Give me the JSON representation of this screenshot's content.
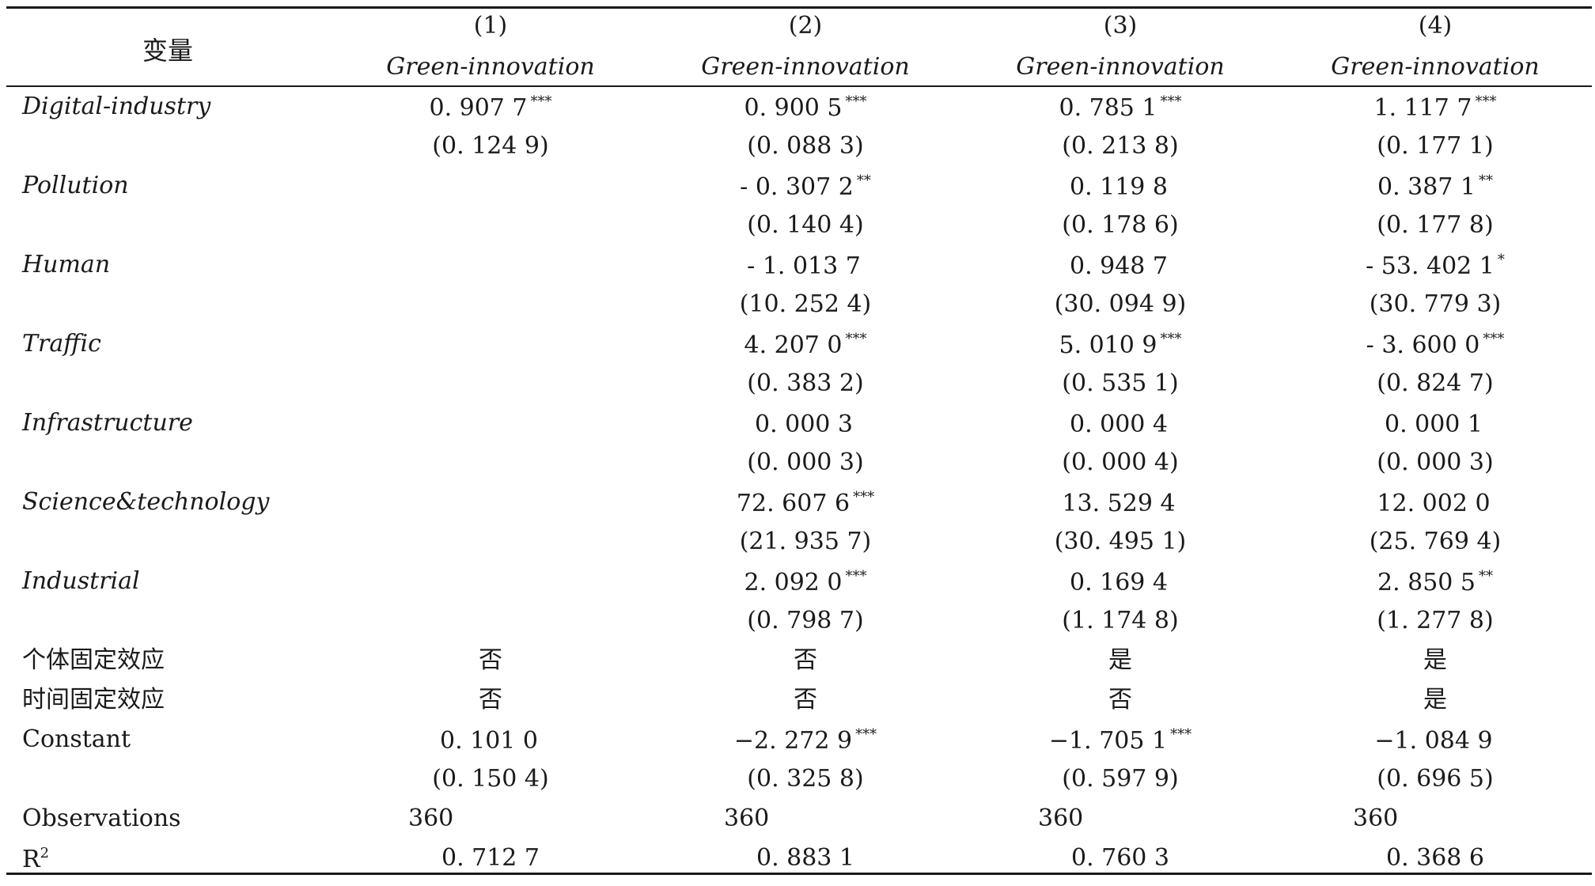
{
  "header": {
    "variable_label": "变量",
    "columns": [
      {
        "number": "(1)",
        "dependent": "Green-innovation"
      },
      {
        "number": "(2)",
        "dependent": "Green-innovation"
      },
      {
        "number": "(3)",
        "dependent": "Green-innovation"
      },
      {
        "number": "(4)",
        "dependent": "Green-innovation"
      }
    ]
  },
  "rows": [
    {
      "name": "Digital-industry",
      "coef": [
        {
          "v": "0. 907 7",
          "s": "***"
        },
        {
          "v": "0. 900 5",
          "s": "***"
        },
        {
          "v": "0. 785 1",
          "s": "***"
        },
        {
          "v": "1. 117 7",
          "s": "***"
        }
      ],
      "se": [
        "(0. 124 9)",
        "(0. 088 3)",
        "(0. 213 8)",
        "(0. 177 1)"
      ]
    },
    {
      "name": "Pollution",
      "coef": [
        {
          "v": "",
          "s": ""
        },
        {
          "v": "- 0. 307 2",
          "s": "**"
        },
        {
          "v": "0. 119 8",
          "s": ""
        },
        {
          "v": "0. 387 1",
          "s": "**"
        }
      ],
      "se": [
        "",
        "(0. 140 4)",
        "(0. 178 6)",
        "(0. 177 8)"
      ]
    },
    {
      "name": "Human",
      "coef": [
        {
          "v": "",
          "s": ""
        },
        {
          "v": "- 1. 013 7",
          "s": ""
        },
        {
          "v": "0. 948 7",
          "s": ""
        },
        {
          "v": "- 53. 402 1",
          "s": "*"
        }
      ],
      "se": [
        "",
        "(10. 252 4)",
        "(30. 094 9)",
        "(30. 779 3)"
      ]
    },
    {
      "name": "Traffic",
      "coef": [
        {
          "v": "",
          "s": ""
        },
        {
          "v": "4. 207 0",
          "s": "***"
        },
        {
          "v": "5. 010 9",
          "s": "***"
        },
        {
          "v": "- 3. 600 0",
          "s": "***"
        }
      ],
      "se": [
        "",
        "(0. 383 2)",
        "(0. 535 1)",
        "(0. 824 7)"
      ]
    },
    {
      "name": "Infrastructure",
      "coef": [
        {
          "v": "",
          "s": ""
        },
        {
          "v": "0. 000 3",
          "s": ""
        },
        {
          "v": "0. 000 4",
          "s": ""
        },
        {
          "v": "0. 000 1",
          "s": ""
        }
      ],
      "se": [
        "",
        "(0. 000 3)",
        "(0. 000 4)",
        "(0. 000 3)"
      ]
    },
    {
      "name": "Science&technology",
      "coef": [
        {
          "v": "",
          "s": ""
        },
        {
          "v": "72. 607 6",
          "s": "***"
        },
        {
          "v": "13. 529 4",
          "s": ""
        },
        {
          "v": "12. 002 0",
          "s": ""
        }
      ],
      "se": [
        "",
        "(21. 935 7)",
        "(30. 495 1)",
        "(25. 769 4)"
      ]
    },
    {
      "name": "Industrial",
      "coef": [
        {
          "v": "",
          "s": ""
        },
        {
          "v": "2. 092 0",
          "s": "***"
        },
        {
          "v": "0. 169 4",
          "s": ""
        },
        {
          "v": "2. 850 5",
          "s": "**"
        }
      ],
      "se": [
        "",
        "(0. 798 7)",
        "(1. 174 8)",
        "(1. 277 8)"
      ]
    }
  ],
  "fixed_effects": [
    {
      "name": "个体固定效应",
      "values": [
        "否",
        "否",
        "是",
        "是"
      ]
    },
    {
      "name": "时间固定效应",
      "values": [
        "否",
        "否",
        "否",
        "是"
      ]
    }
  ],
  "constant": {
    "name": "Constant",
    "coef": [
      {
        "v": "0. 101 0",
        "s": ""
      },
      {
        "v": "−2. 272 9",
        "s": "***"
      },
      {
        "v": "−1. 705 1",
        "s": "***"
      },
      {
        "v": "−1. 084 9",
        "s": ""
      }
    ],
    "se": [
      "(0. 150 4)",
      "(0. 325 8)",
      "(0. 597 9)",
      "(0. 696 5)"
    ]
  },
  "observations": {
    "name": "Observations",
    "values": [
      "360",
      "360",
      "360",
      "360"
    ]
  },
  "r2": {
    "name": "R",
    "sup": "2",
    "values": [
      "0. 712 7",
      "0. 883 1",
      "0. 760 3",
      "0. 368 6"
    ]
  }
}
